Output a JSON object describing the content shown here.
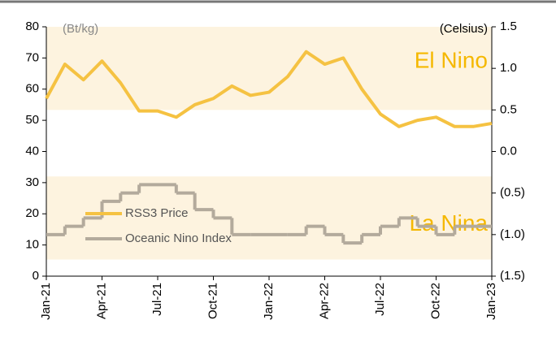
{
  "chart_data": {
    "type": "line",
    "y_label": "(Bt/kg)",
    "y2_label": "(Celsius)",
    "categories": [
      "Jan-21",
      null,
      null,
      "Apr-21",
      null,
      null,
      "Jul-21",
      null,
      null,
      "Oct-21",
      null,
      null,
      "Jan-22",
      null,
      null,
      "Apr-22",
      null,
      null,
      "Jul-22",
      null,
      null,
      "Oct-22",
      null,
      null,
      "Jan-23"
    ],
    "series": [
      {
        "name": "RSS3 Price",
        "color": "#f5c242",
        "values": [
          57,
          68,
          63,
          69,
          62,
          53,
          53,
          51,
          55,
          57,
          61,
          58,
          59,
          64,
          72,
          68,
          70,
          60,
          52,
          48,
          50,
          51,
          48,
          48,
          49
        ]
      },
      {
        "name": "Oceanic Nino Index",
        "color": "#b3aa9c",
        "axis": "y2",
        "step": true,
        "values": [
          -1.0,
          -0.9,
          -0.8,
          -0.6,
          -0.5,
          -0.4,
          -0.4,
          -0.5,
          -0.7,
          -0.8,
          -1.0,
          -1.0,
          -1.0,
          -1.0,
          -0.9,
          -1.0,
          -1.1,
          -1.0,
          -0.9,
          -0.8,
          -0.9,
          -1.0,
          -0.9,
          -0.9,
          -0.9
        ]
      }
    ],
    "bands": [
      {
        "label": "El Nino",
        "y2range": [
          0.5,
          1.5
        ]
      },
      {
        "label": "La Nina",
        "y2range": [
          -0.3,
          -1.3
        ]
      }
    ],
    "ylim": [
      0,
      80
    ],
    "yticks": [
      0,
      10,
      20,
      30,
      40,
      50,
      60,
      70,
      80
    ],
    "y2lim": [
      -1.5,
      1.5
    ],
    "y2ticks": [
      {
        "value": -1.5,
        "label": "(1.5)"
      },
      {
        "value": -1.0,
        "label": "(1.0)"
      },
      {
        "value": -0.5,
        "label": "(0.5)"
      },
      {
        "value": 0,
        "label": "0.0"
      },
      0.5,
      {
        "value": 1.0,
        "label": "1.0"
      },
      1.5
    ],
    "grid": false
  }
}
